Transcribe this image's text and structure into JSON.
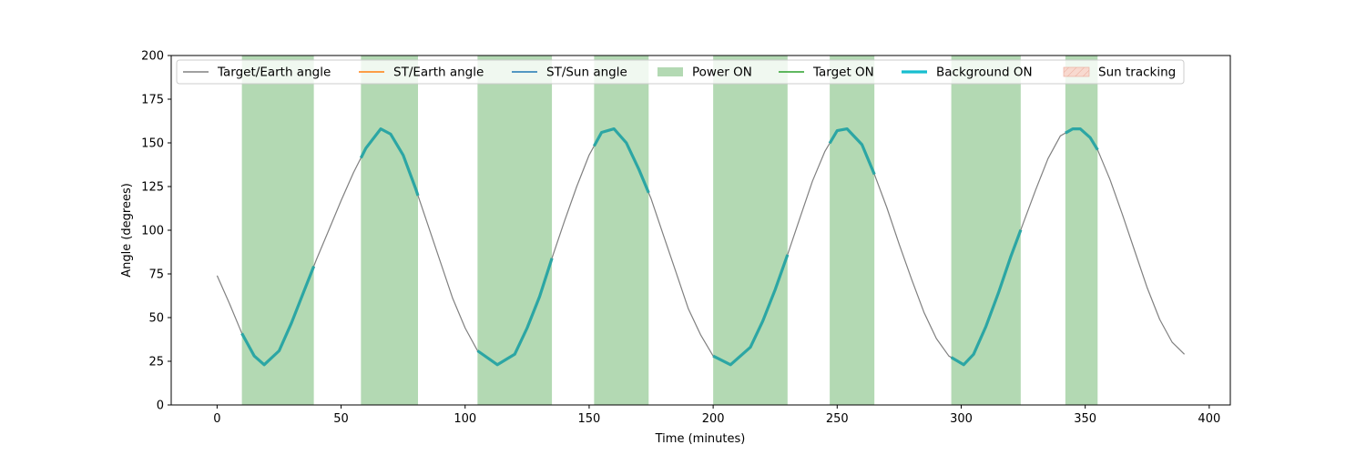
{
  "chart_data": {
    "type": "line",
    "title": "",
    "xlabel": "Time (minutes)",
    "ylabel": "Angle (degrees)",
    "xlim": [
      -18.5,
      408.5
    ],
    "ylim": [
      0,
      200
    ],
    "x_ticks": [
      0,
      50,
      100,
      150,
      200,
      250,
      300,
      350,
      400
    ],
    "y_ticks": [
      0,
      25,
      50,
      75,
      100,
      125,
      150,
      175,
      200
    ],
    "grid": false,
    "legend_placement": "top (single row)",
    "series": [
      {
        "name": "Target/Earth angle",
        "color": "#808080",
        "style": "line",
        "x": [
          0,
          5,
          10,
          15,
          19,
          25,
          30,
          35,
          40,
          45,
          50,
          55,
          60,
          66,
          70,
          75,
          80,
          85,
          90,
          95,
          100,
          105,
          113,
          120,
          125,
          130,
          135,
          140,
          145,
          150,
          155,
          160,
          165,
          170,
          175,
          180,
          185,
          190,
          195,
          200,
          207,
          215,
          220,
          225,
          230,
          235,
          240,
          245,
          250,
          254,
          260,
          265,
          270,
          275,
          280,
          285,
          290,
          295,
          301,
          305,
          310,
          315,
          320,
          325,
          330,
          335,
          340,
          345,
          348,
          352,
          355,
          360,
          365,
          370,
          375,
          380,
          385,
          390
        ],
        "y": [
          74,
          58,
          41,
          28,
          23,
          31,
          47,
          65,
          83,
          100,
          117,
          133,
          147,
          158,
          155,
          143,
          124,
          103,
          82,
          61,
          44,
          31,
          23,
          29,
          44,
          62,
          84,
          105,
          125,
          143,
          156,
          158,
          150,
          135,
          118,
          97,
          76,
          55,
          40,
          28,
          23,
          33,
          48,
          66,
          86,
          107,
          128,
          145,
          157,
          158,
          149,
          132,
          113,
          92,
          72,
          53,
          38,
          28,
          23,
          29,
          45,
          64,
          85,
          104,
          123,
          141,
          154,
          158,
          158,
          153,
          146,
          129,
          109,
          88,
          67,
          49,
          36,
          29
        ]
      },
      {
        "name": "ST/Earth angle",
        "color": "#ff7f0e",
        "style": "line",
        "x": [],
        "y": []
      },
      {
        "name": "ST/Sun angle",
        "color": "#1f77b4",
        "style": "line",
        "x": [],
        "y": []
      },
      {
        "name": "Target ON",
        "color": "#2ca02c",
        "style": "line",
        "x": [],
        "y": []
      },
      {
        "name": "Background ON",
        "color": "#17becf",
        "style": "thick-line",
        "x": [],
        "y": []
      }
    ],
    "power_on_intervals": [
      [
        10,
        39
      ],
      [
        58,
        81
      ],
      [
        105,
        135
      ],
      [
        152,
        174
      ],
      [
        200,
        230
      ],
      [
        247,
        265
      ],
      [
        296,
        324
      ],
      [
        342,
        355
      ]
    ],
    "power_on_color": "#b3d9b3",
    "highlight_color": "#2ca6a4",
    "legend": [
      {
        "label": "Target/Earth angle",
        "kind": "line",
        "color": "#808080"
      },
      {
        "label": "ST/Earth angle",
        "kind": "line",
        "color": "#ff7f0e"
      },
      {
        "label": "ST/Sun angle",
        "kind": "line",
        "color": "#1f77b4"
      },
      {
        "label": "Power ON",
        "kind": "patch",
        "color": "#b3d9b3"
      },
      {
        "label": "Target ON",
        "kind": "line",
        "color": "#2ca02c"
      },
      {
        "label": "Background ON",
        "kind": "thick-line",
        "color": "#17becf"
      },
      {
        "label": "Sun tracking",
        "kind": "hatch-patch",
        "color": "#f4c7b8"
      }
    ]
  }
}
